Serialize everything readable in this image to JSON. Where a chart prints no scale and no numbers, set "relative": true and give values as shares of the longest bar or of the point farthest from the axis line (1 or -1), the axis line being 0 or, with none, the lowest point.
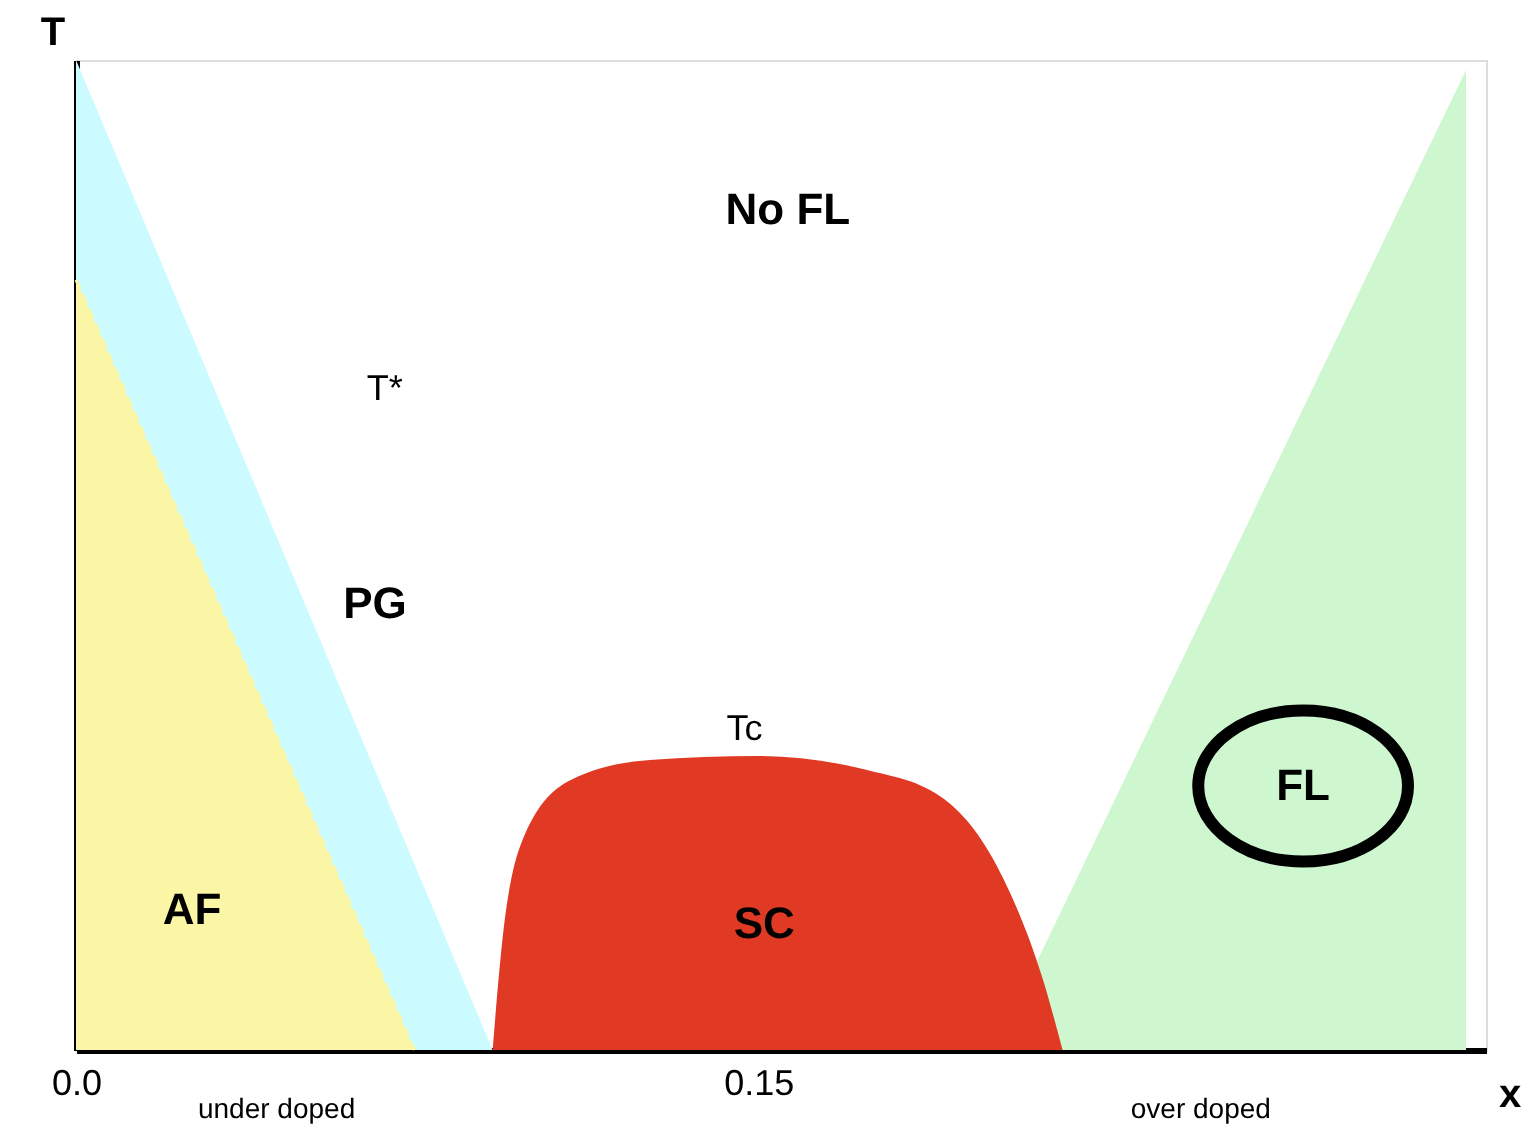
{
  "chart_data": {
    "type": "area",
    "relative": true,
    "xlabel": "x",
    "ylabel": "T",
    "xlim": [
      0,
      0.31
    ],
    "xticks": [
      {
        "value": 0,
        "label": "0.0"
      },
      0.15
    ],
    "grid": false,
    "series": [
      {
        "color": "#ccfbff",
        "x": [
          0,
          0.0916
        ],
        "values": [
          1,
          0
        ]
      },
      {
        "color": "#faf6a6",
        "line_style": "dashed",
        "x": [
          0,
          0.0744
        ],
        "values": [
          0.778,
          0
        ]
      },
      {
        "color": "#cff7cf",
        "x": [
          0.2019,
          0.3056,
          0.3056
        ],
        "values": [
          0,
          0.99,
          0
        ]
      },
      {
        "color": "#e03a24",
        "x": [
          0.0916,
          0.0937,
          0.098,
          0.1089,
          0.1262,
          0.1499,
          0.1737,
          0.191,
          0.204,
          0.2126,
          0.2169
        ],
        "values": [
          0,
          0.109,
          0.21,
          0.273,
          0.293,
          0.297,
          0.283,
          0.253,
          0.172,
          0.071,
          0
        ]
      }
    ],
    "annotations": [
      "No FL",
      "T*",
      "PG",
      "AF",
      "Tc",
      "SC",
      "FL",
      "under doped",
      "over doped"
    ]
  }
}
